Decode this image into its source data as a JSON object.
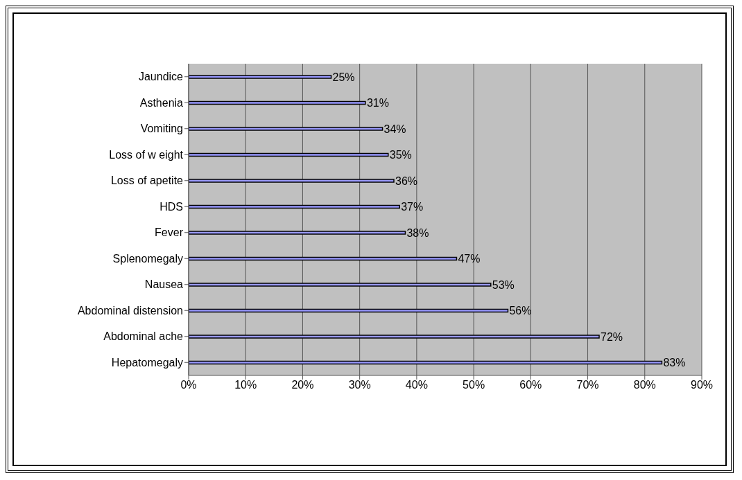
{
  "chart_data": {
    "type": "bar",
    "orientation": "horizontal",
    "categories": [
      "Jaundice",
      "Asthenia",
      "Vomiting",
      "Loss of w eight",
      "Loss of apetite",
      "HDS",
      "Fever",
      "Splenomegaly",
      "Nausea",
      "Abdominal distension",
      "Abdominal ache",
      "Hepatomegaly"
    ],
    "values": [
      25,
      31,
      34,
      35,
      36,
      37,
      38,
      47,
      53,
      56,
      72,
      83
    ],
    "value_labels": [
      "25%",
      "31%",
      "34%",
      "35%",
      "36%",
      "37%",
      "38%",
      "47%",
      "53%",
      "56%",
      "72%",
      "83%"
    ],
    "color": "#9999ff",
    "xlim": [
      0,
      90
    ],
    "xticks": [
      {
        "value": 0,
        "label": "0%"
      },
      {
        "value": 10,
        "label": "10%"
      },
      {
        "value": 20,
        "label": "20%"
      },
      {
        "value": 30,
        "label": "30%"
      },
      {
        "value": 40,
        "label": "40%"
      },
      {
        "value": 50,
        "label": "50%"
      },
      {
        "value": 60,
        "label": "60%"
      },
      {
        "value": 70,
        "label": "70%"
      },
      {
        "value": 80,
        "label": "80%"
      },
      {
        "value": 90,
        "label": "90%"
      }
    ],
    "grid": "x",
    "legend": false
  }
}
